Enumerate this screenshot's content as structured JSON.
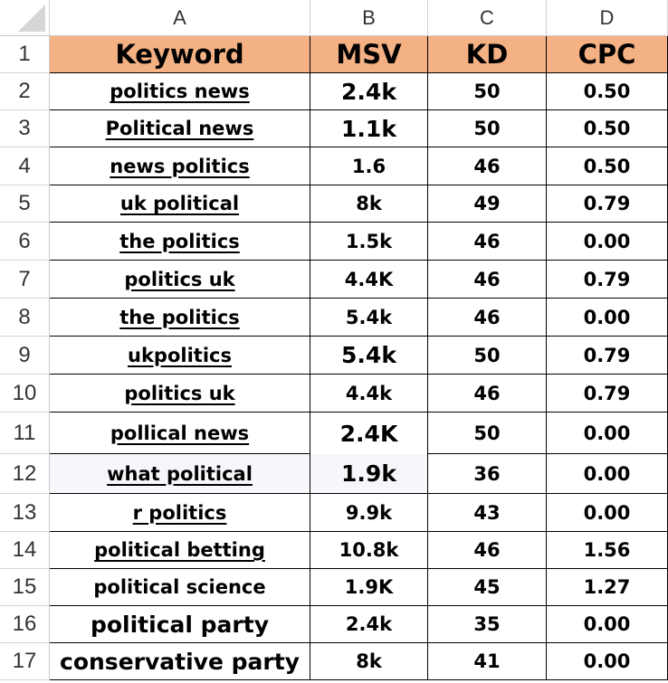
{
  "columns": [
    "A",
    "B",
    "C",
    "D"
  ],
  "header": [
    "Keyword",
    "MSV",
    "KD",
    "CPC"
  ],
  "rows": [
    {
      "n": "2",
      "keyword": "politics news",
      "msv": "2.4k",
      "kd": "50",
      "cpc": "0.50",
      "link": true
    },
    {
      "n": "3",
      "keyword": "Political news",
      "msv": "1.1k",
      "kd": "50",
      "cpc": "0.50",
      "link": true
    },
    {
      "n": "4",
      "keyword": "news politics",
      "msv": "1.6",
      "kd": "46",
      "cpc": "0.50",
      "link": true
    },
    {
      "n": "5",
      "keyword": "uk political",
      "msv": "8k",
      "kd": "49",
      "cpc": "0.79",
      "link": true
    },
    {
      "n": "6",
      "keyword": "the politics",
      "msv": "1.5k",
      "kd": "46",
      "cpc": "0.00",
      "link": true
    },
    {
      "n": "7",
      "keyword": "politics uk",
      "msv": "4.4K",
      "kd": "46",
      "cpc": "0.79",
      "link": true
    },
    {
      "n": "8",
      "keyword": "the politics",
      "msv": "5.4k",
      "kd": "46",
      "cpc": "0.00",
      "link": true
    },
    {
      "n": "9",
      "keyword": "ukpolitics",
      "msv": "5.4k",
      "kd": "50",
      "cpc": "0.79",
      "link": true
    },
    {
      "n": "10",
      "keyword": "politics uk",
      "msv": "4.4k",
      "kd": "46",
      "cpc": "0.79",
      "link": true
    },
    {
      "n": "11",
      "keyword": "pollical news",
      "msv": "2.4K",
      "kd": "50",
      "cpc": "0.00",
      "link": true
    },
    {
      "n": "12",
      "keyword": "what political",
      "msv": "1.9k",
      "kd": "36",
      "cpc": "0.00",
      "link": true
    },
    {
      "n": "13",
      "keyword": "r politics",
      "msv": "9.9k",
      "kd": "43",
      "cpc": "0.00",
      "link": true
    },
    {
      "n": "14",
      "keyword": "political betting",
      "msv": "10.8k",
      "kd": "46",
      "cpc": "1.56",
      "link": true
    },
    {
      "n": "15",
      "keyword": "political science",
      "msv": "1.9K",
      "kd": "45",
      "cpc": "1.27",
      "link": false
    },
    {
      "n": "16",
      "keyword": "political party",
      "msv": "2.4k",
      "kd": "35",
      "cpc": "0.00",
      "link": false
    },
    {
      "n": "17",
      "keyword": "conservative party",
      "msv": "8k",
      "kd": "41",
      "cpc": "0.00",
      "link": false
    }
  ],
  "colors": {
    "header_fill": "#f4b183",
    "highlight_row": "#f5f7fa"
  }
}
